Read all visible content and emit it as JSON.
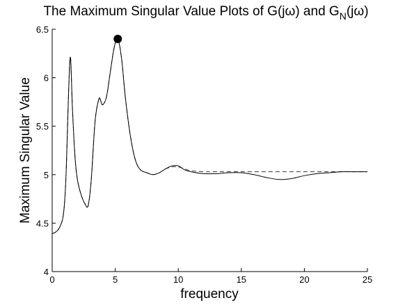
{
  "chart_data": {
    "type": "line",
    "title": {
      "prefix": "The Maximum Singular Value Plots of G(jω) and G",
      "subscript": "N",
      "suffix": "(jω)"
    },
    "xlabel": "frequency",
    "ylabel": "Maximum Singular Value",
    "xlim": [
      0,
      25
    ],
    "ylim": [
      4,
      6.5
    ],
    "xticks": [
      0,
      5,
      10,
      15,
      20,
      25
    ],
    "yticks": [
      4,
      4.5,
      5,
      5.5,
      6,
      6.5
    ],
    "grid": false,
    "series": [
      {
        "style": "solid",
        "color": "#000000",
        "x": [
          0,
          0.3,
          0.6,
          0.9,
          1.1,
          1.3,
          1.45,
          1.6,
          1.8,
          2.0,
          2.3,
          2.6,
          2.85,
          3.1,
          3.4,
          3.7,
          3.85,
          4.0,
          4.3,
          4.6,
          4.9,
          5.2,
          5.5,
          5.8,
          6.2,
          6.6,
          7.0,
          7.5,
          8.0,
          8.5,
          9.0,
          9.5,
          10.0,
          10.5,
          11.0,
          12.0,
          13.0,
          14.0,
          15.0,
          16.0,
          17.0,
          18.0,
          19.0,
          20.0,
          21.0,
          22.0,
          23.0,
          24.0,
          25.0
        ],
        "y": [
          4.39,
          4.41,
          4.46,
          4.6,
          5.0,
          5.85,
          6.21,
          5.7,
          5.2,
          4.95,
          4.79,
          4.7,
          4.68,
          4.95,
          5.55,
          5.78,
          5.76,
          5.72,
          5.8,
          6.05,
          6.3,
          6.4,
          6.2,
          5.8,
          5.4,
          5.15,
          5.05,
          5.02,
          5.0,
          5.02,
          5.06,
          5.09,
          5.09,
          5.05,
          5.03,
          5.01,
          5.01,
          5.02,
          5.02,
          5.0,
          4.97,
          4.95,
          4.96,
          4.99,
          5.01,
          5.02,
          5.03,
          5.03,
          5.03
        ]
      },
      {
        "style": "dashed",
        "color": "#333333",
        "x": [
          0,
          0.3,
          0.6,
          0.9,
          1.1,
          1.3,
          1.45,
          1.6,
          1.8,
          2.0,
          2.3,
          2.6,
          2.85,
          3.1,
          3.4,
          3.7,
          3.85,
          4.0,
          4.3,
          4.6,
          4.9,
          5.2,
          5.5,
          5.8,
          6.2,
          6.6,
          7.0,
          7.5,
          8.0,
          8.5,
          9.0,
          9.5,
          10.0,
          10.5,
          11.0,
          12.0,
          13.0,
          14.0,
          15.0,
          16.0,
          17.0,
          18.0,
          19.0,
          20.0,
          21.0,
          22.0,
          23.0,
          24.0,
          25.0
        ],
        "y": [
          4.39,
          4.41,
          4.46,
          4.6,
          5.0,
          5.85,
          6.21,
          5.7,
          5.2,
          4.95,
          4.79,
          4.7,
          4.68,
          4.95,
          5.55,
          5.78,
          5.76,
          5.72,
          5.8,
          6.05,
          6.3,
          6.4,
          6.2,
          5.8,
          5.4,
          5.15,
          5.05,
          5.02,
          5.0,
          5.02,
          5.06,
          5.08,
          5.08,
          5.06,
          5.04,
          5.03,
          5.03,
          5.03,
          5.03,
          5.03,
          5.03,
          5.03,
          5.03,
          5.03,
          5.03,
          5.03,
          5.03,
          5.03,
          5.03
        ]
      }
    ],
    "markers": [
      {
        "x": 5.2,
        "y": 6.4,
        "color": "#000000"
      }
    ]
  }
}
